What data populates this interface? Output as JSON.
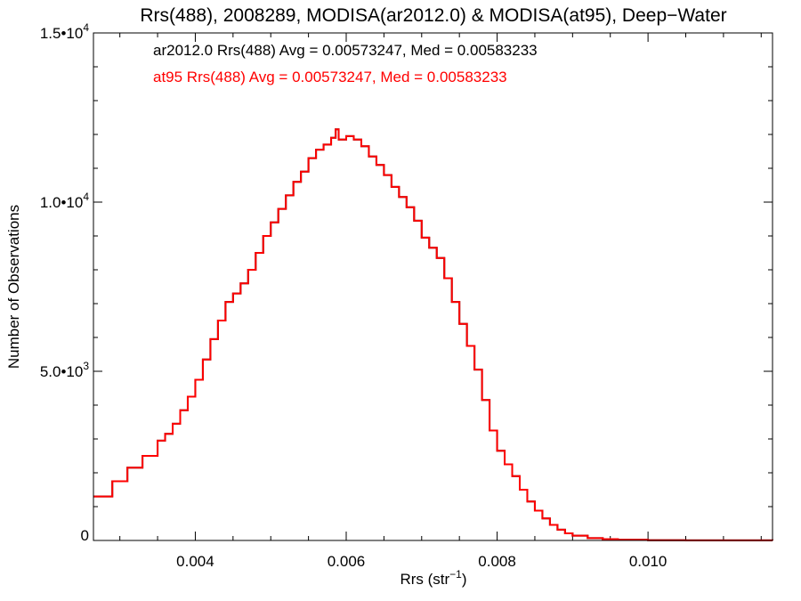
{
  "chart_data": {
    "type": "line",
    "step": true,
    "title": "Rrs(488), 2008289, MODISA(ar2012.0) & MODISA(at95), Deep−Water",
    "xlabel": "Rrs (str",
    "xlabel_sup": "−1",
    "xlabel_close": ")",
    "ylabel": "Number of Observations",
    "xlim": [
      0.00265,
      0.01165
    ],
    "ylim": [
      0,
      15000
    ],
    "grid": false,
    "x_ticks": [
      {
        "value": 0.004,
        "label": "0.004"
      },
      {
        "value": 0.006,
        "label": "0.006"
      },
      {
        "value": 0.008,
        "label": "0.008"
      },
      {
        "value": 0.01,
        "label": "0.010"
      }
    ],
    "y_ticks": [
      {
        "value": 0,
        "mantissa": "0",
        "exp": ""
      },
      {
        "value": 5000,
        "mantissa": "5.0•10",
        "exp": "3"
      },
      {
        "value": 10000,
        "mantissa": "1.0•10",
        "exp": "4"
      },
      {
        "value": 15000,
        "mantissa": "1.5•10",
        "exp": "4"
      }
    ],
    "annotations": [
      {
        "text": "ar2012.0 Rrs(488) Avg = 0.00573247, Med = 0.00583233",
        "color": "#000000"
      },
      {
        "text": "at95 Rrs(488) Avg = 0.00573247, Med = 0.00583233",
        "color": "#ff0000"
      }
    ],
    "series": [
      {
        "name": "ar2012.0",
        "color": "#000000",
        "x": [
          0.00265,
          0.0029,
          0.0031,
          0.0033,
          0.0035,
          0.0036,
          0.0037,
          0.0038,
          0.0039,
          0.004,
          0.0041,
          0.0042,
          0.0043,
          0.0044,
          0.0045,
          0.0046,
          0.0047,
          0.0048,
          0.0049,
          0.005,
          0.0051,
          0.0052,
          0.0053,
          0.0054,
          0.0055,
          0.0056,
          0.0057,
          0.0058,
          0.00586,
          0.0059,
          0.006,
          0.0061,
          0.0062,
          0.0063,
          0.0064,
          0.0065,
          0.0066,
          0.0067,
          0.0068,
          0.0069,
          0.007,
          0.0071,
          0.0072,
          0.0073,
          0.0074,
          0.0075,
          0.0076,
          0.0077,
          0.0078,
          0.0079,
          0.008,
          0.0081,
          0.0082,
          0.0083,
          0.0084,
          0.0085,
          0.0086,
          0.0087,
          0.0088,
          0.0089,
          0.009,
          0.0092,
          0.0094,
          0.0096,
          0.01,
          0.0105,
          0.011,
          0.01165
        ],
        "y": [
          1300,
          1750,
          2150,
          2500,
          2950,
          3150,
          3450,
          3850,
          4250,
          4750,
          5350,
          5950,
          6500,
          7050,
          7300,
          7600,
          8000,
          8500,
          9000,
          9400,
          9800,
          10200,
          10600,
          10900,
          11300,
          11550,
          11700,
          11900,
          12150,
          11850,
          11950,
          11850,
          11650,
          11350,
          11100,
          10800,
          10450,
          10150,
          9850,
          9450,
          8950,
          8650,
          8350,
          7750,
          7050,
          6400,
          5750,
          5050,
          4150,
          3250,
          2650,
          2250,
          1900,
          1500,
          1150,
          880,
          650,
          460,
          320,
          210,
          140,
          70,
          40,
          20,
          8,
          4,
          2,
          1
        ]
      },
      {
        "name": "at95",
        "color": "#ff0000",
        "x": [
          0.00265,
          0.0029,
          0.0031,
          0.0033,
          0.0035,
          0.0036,
          0.0037,
          0.0038,
          0.0039,
          0.004,
          0.0041,
          0.0042,
          0.0043,
          0.0044,
          0.0045,
          0.0046,
          0.0047,
          0.0048,
          0.0049,
          0.005,
          0.0051,
          0.0052,
          0.0053,
          0.0054,
          0.0055,
          0.0056,
          0.0057,
          0.0058,
          0.00586,
          0.0059,
          0.006,
          0.0061,
          0.0062,
          0.0063,
          0.0064,
          0.0065,
          0.0066,
          0.0067,
          0.0068,
          0.0069,
          0.007,
          0.0071,
          0.0072,
          0.0073,
          0.0074,
          0.0075,
          0.0076,
          0.0077,
          0.0078,
          0.0079,
          0.008,
          0.0081,
          0.0082,
          0.0083,
          0.0084,
          0.0085,
          0.0086,
          0.0087,
          0.0088,
          0.0089,
          0.009,
          0.0092,
          0.0094,
          0.0096,
          0.01,
          0.0105,
          0.011,
          0.01165
        ],
        "y": [
          1300,
          1750,
          2150,
          2500,
          2950,
          3150,
          3450,
          3850,
          4250,
          4750,
          5350,
          5950,
          6500,
          7050,
          7300,
          7600,
          8000,
          8500,
          9000,
          9400,
          9800,
          10200,
          10600,
          10900,
          11300,
          11550,
          11700,
          11900,
          12150,
          11850,
          11950,
          11850,
          11650,
          11350,
          11100,
          10800,
          10450,
          10150,
          9850,
          9450,
          8950,
          8650,
          8350,
          7750,
          7050,
          6400,
          5750,
          5050,
          4150,
          3250,
          2650,
          2250,
          1900,
          1500,
          1150,
          880,
          650,
          460,
          320,
          210,
          140,
          70,
          40,
          20,
          8,
          4,
          2,
          1
        ]
      }
    ]
  }
}
